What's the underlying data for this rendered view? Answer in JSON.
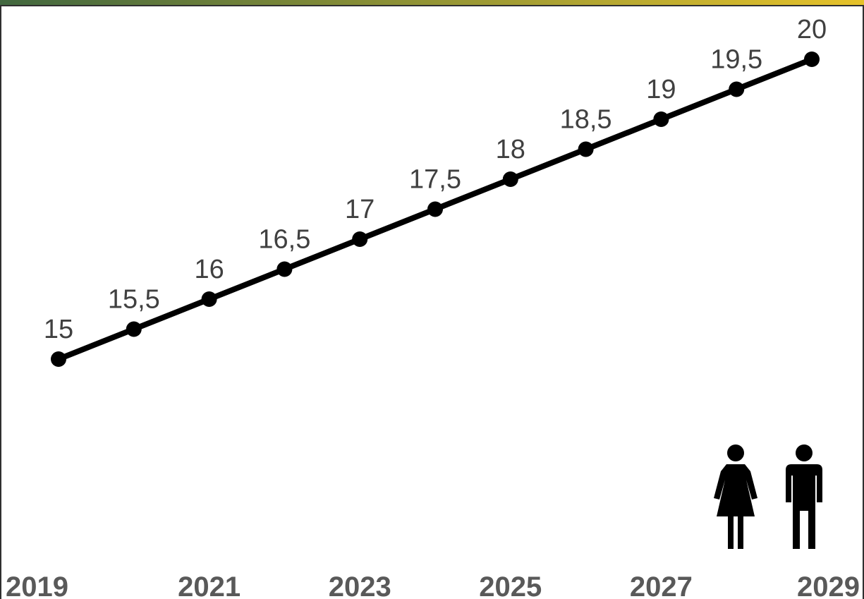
{
  "colors": {
    "header_gradient_start": "#41673f",
    "header_gradient_end": "#e6c22a",
    "series": "#000000",
    "label": "#404040",
    "tick": "#595959"
  },
  "icons": [
    "woman-icon",
    "man-icon"
  ],
  "chart_data": {
    "type": "line",
    "title": "",
    "xlabel": "",
    "ylabel": "",
    "x": [
      2019,
      2020,
      2021,
      2022,
      2023,
      2024,
      2025,
      2026,
      2027,
      2028,
      2029
    ],
    "x_tick_labels": [
      "2019",
      "2021",
      "2023",
      "2025",
      "2027",
      "2029"
    ],
    "series": [
      {
        "values": [
          15,
          15.5,
          16,
          16.5,
          17,
          17.5,
          18,
          18.5,
          19,
          19.5,
          20
        ],
        "data_labels": [
          "15",
          "15,5",
          "16",
          "16,5",
          "17",
          "17,5",
          "18",
          "18,5",
          "19",
          "19,5",
          "20"
        ]
      }
    ],
    "ylim": [
      10,
      20.3
    ],
    "grid": false,
    "legend": "none"
  }
}
